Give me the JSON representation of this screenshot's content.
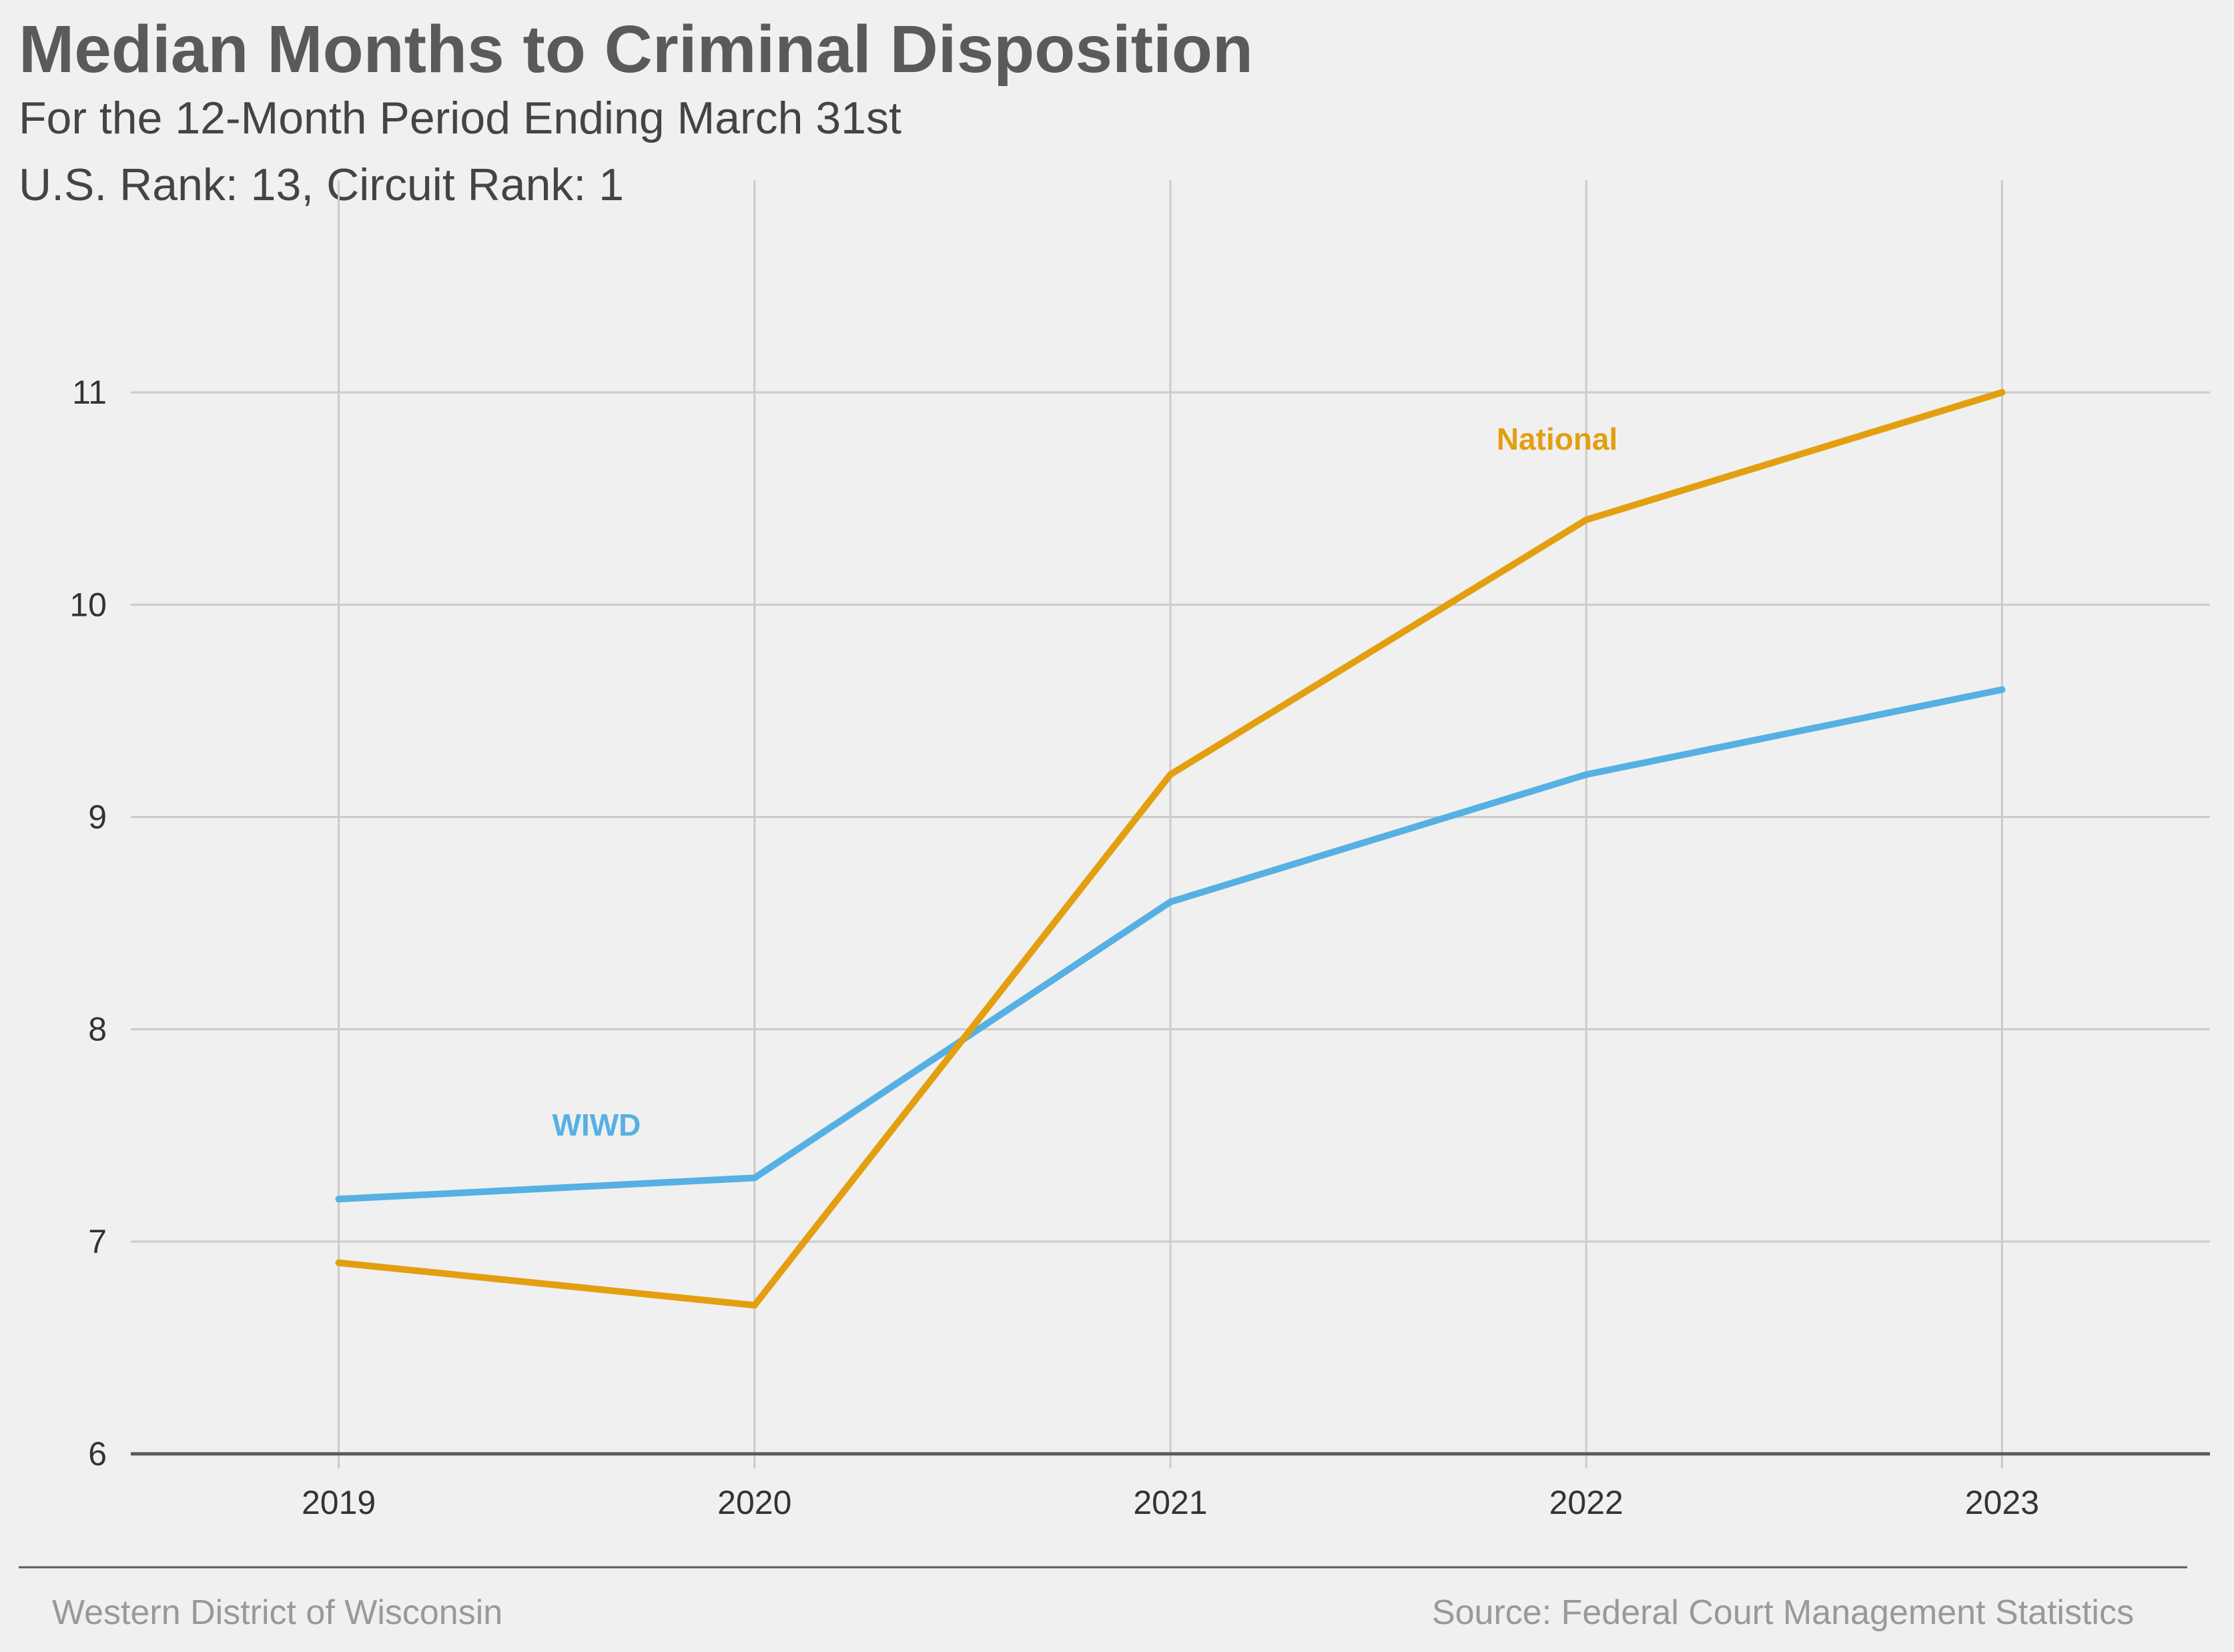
{
  "title": "Median Months to Criminal Disposition",
  "subtitle_1": "For the 12-Month Period Ending March 31st",
  "subtitle_2": "U.S. Rank: 13, Circuit Rank: 1",
  "footer_left": "Western District of Wisconsin",
  "footer_right": "Source: Federal Court Management Statistics",
  "colors": {
    "wiwd": "#56B0E3",
    "national": "#E39F10",
    "grid": "#cbcbcb",
    "axis": "#5a5a5a",
    "background": "#f0f0f0"
  },
  "chart_data": {
    "type": "line",
    "x": [
      2019,
      2020,
      2021,
      2022,
      2023
    ],
    "xlim": [
      2018.5,
      2023.5
    ],
    "ylim": [
      6,
      12
    ],
    "yticks": [
      6,
      7,
      8,
      9,
      10,
      11
    ],
    "grid": true,
    "series": [
      {
        "name": "WIWD",
        "values": [
          7.2,
          7.3,
          8.6,
          9.2,
          9.6
        ],
        "color": "#56B0E3",
        "label_at": [
          2019.62,
          7.55
        ]
      },
      {
        "name": "National",
        "values": [
          6.9,
          6.7,
          9.2,
          10.4,
          11.0
        ],
        "color": "#E39F10",
        "label_at": [
          2021.93,
          10.78
        ]
      }
    ]
  }
}
